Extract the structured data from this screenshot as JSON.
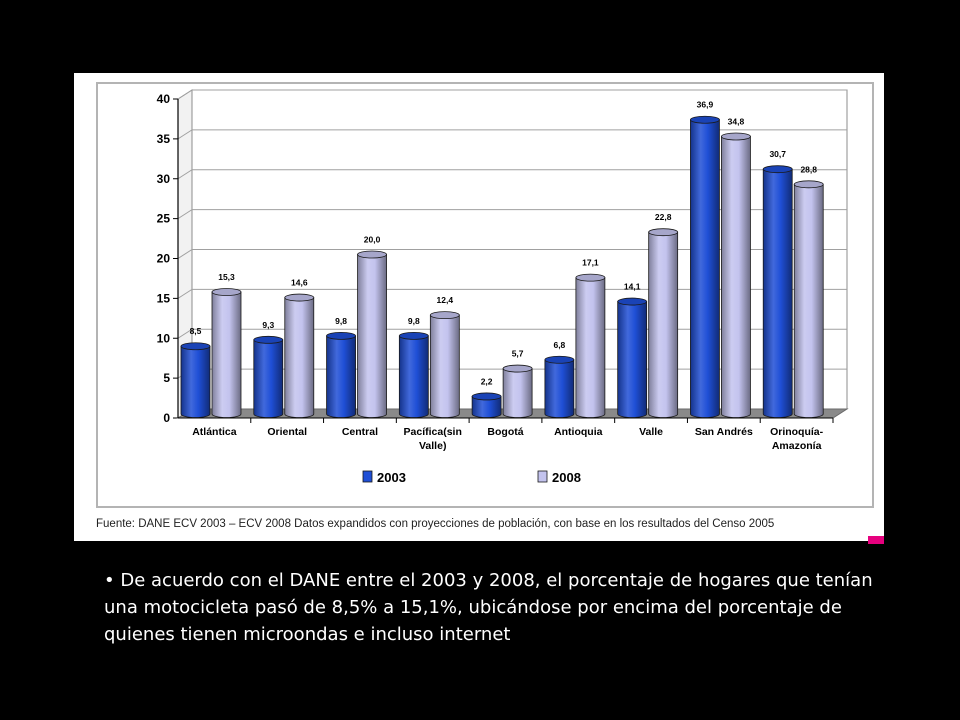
{
  "chart_data": {
    "type": "bar",
    "title": "",
    "xlabel": "",
    "ylabel": "",
    "ylim": [
      0,
      40
    ],
    "yticks": [
      "0",
      "5",
      "10",
      "15",
      "20",
      "25",
      "30",
      "35",
      "40"
    ],
    "grid": true,
    "legend_position": "bottom",
    "categories": [
      [
        "Atlántica"
      ],
      [
        "Oriental"
      ],
      [
        "Central"
      ],
      [
        "Pacífica(sin",
        "Valle)"
      ],
      [
        "Bogotá"
      ],
      [
        "Antioquia"
      ],
      [
        "Valle"
      ],
      [
        "San Andrés"
      ],
      [
        "Orinoquía-",
        "Amazonía"
      ]
    ],
    "series": [
      {
        "name": "2003",
        "color": "#1f4fd6",
        "values": [
          8.5,
          9.3,
          9.8,
          9.8,
          2.2,
          6.8,
          14.1,
          36.9,
          30.7
        ],
        "labels": [
          "8,5",
          "9,3",
          "9,8",
          "9,8",
          "2,2",
          "6,8",
          "14,1",
          "36,9",
          "30,7"
        ]
      },
      {
        "name": "2008",
        "color": "#c3c3ee",
        "values": [
          15.3,
          14.6,
          20.0,
          12.4,
          5.7,
          17.1,
          22.8,
          34.8,
          28.8
        ],
        "labels": [
          "15,3",
          "14,6",
          "20,0",
          "12,4",
          "5,7",
          "17,1",
          "22,8",
          "34,8",
          "28,8"
        ]
      }
    ]
  },
  "source_note": "Fuente: DANE ECV 2003 – ECV 2008 Datos expandidos con proyecciones de población, con base en los resultados del Censo 2005",
  "bullet": {
    "marker": "•",
    "text": "De acuerdo con el DANE entre el 2003 y 2008, el porcentaje de hogares que tenían una motocicleta pasó de 8,5% a 15,1%, ubicándose por encima del porcentaje de quienes tienen microondas e incluso internet"
  }
}
